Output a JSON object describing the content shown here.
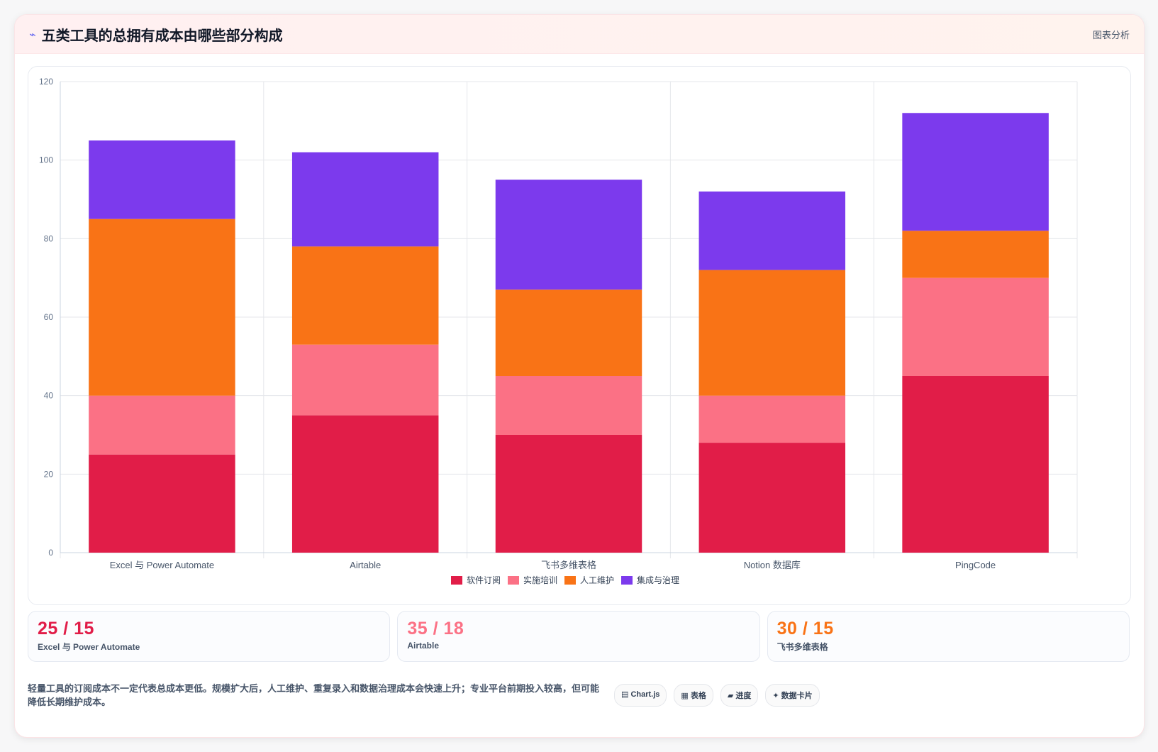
{
  "header": {
    "icon": "chart-trend-icon",
    "title": "五类工具的总拥有成本由哪些部分构成",
    "link_label": "图表分析"
  },
  "chart_data": {
    "type": "bar",
    "stacked": true,
    "categories": [
      "Excel 与 Power Automate",
      "Airtable",
      "飞书多维表格",
      "Notion 数据库",
      "PingCode"
    ],
    "series": [
      {
        "name": "软件订阅",
        "color": "#e11d48",
        "values": [
          25,
          35,
          30,
          28,
          45
        ]
      },
      {
        "name": "实施培训",
        "color": "#fb7185",
        "values": [
          15,
          18,
          15,
          12,
          25
        ]
      },
      {
        "name": "人工维护",
        "color": "#f97316",
        "values": [
          45,
          25,
          22,
          32,
          12
        ]
      },
      {
        "name": "集成与治理",
        "color": "#7c3aed",
        "values": [
          20,
          24,
          28,
          20,
          30
        ]
      }
    ],
    "ylim": [
      0,
      120
    ],
    "yticks": [
      0,
      20,
      40,
      60,
      80,
      100,
      120
    ],
    "grid": true,
    "legend_position": "bottom"
  },
  "stats": [
    {
      "value": "25 / 15",
      "label": "Excel 与 Power Automate",
      "color": "#e11d48"
    },
    {
      "value": "35 / 18",
      "label": "Airtable",
      "color": "#fb7185"
    },
    {
      "value": "30 / 15",
      "label": "飞书多维表格",
      "color": "#f97316"
    }
  ],
  "footer": {
    "text": "轻量工具的订阅成本不一定代表总成本更低。规模扩大后，人工维护、重复录入和数据治理成本会快速上升；专业平台前期投入较高，但可能降低长期维护成本。",
    "tags": [
      "▤ Chart.js",
      "▦ 表格",
      "▰ 进度",
      "✦ 数据卡片"
    ]
  }
}
